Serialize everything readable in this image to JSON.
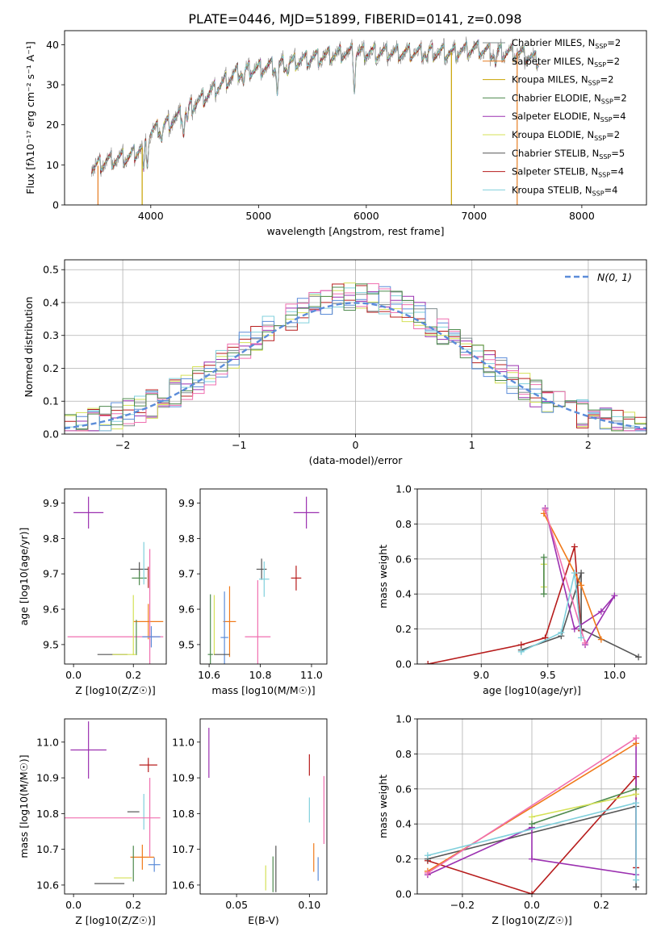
{
  "figure": {
    "title": "PLATE=0446, MJD=51899, FIBERID=0141, z=0.098"
  },
  "colors": {
    "chabrier_miles": "#7f8c8d",
    "salpeter_miles": "#e67e22",
    "kroupa_miles": "#c8a200",
    "chabrier_elodie": "#4e8a4e",
    "salpeter_elodie": "#9b30b0",
    "kroupa_elodie": "#d4e157",
    "chabrier_stelib": "#555555",
    "salpeter_stelib": "#b71c1c",
    "kroupa_stelib": "#80d0dc",
    "pink": "#f06fb0",
    "blue": "#5b8cd9",
    "orange": "#f07a1a"
  },
  "chart_data": [
    {
      "id": "spectrum",
      "type": "line",
      "xlabel": "wavelength [Angstrom, rest frame]",
      "ylabel": "Flux [fλ10⁻¹⁷ erg cm⁻² s⁻¹ A⁻¹]",
      "xlim": [
        3200,
        8600
      ],
      "ylim": [
        0,
        43.5
      ],
      "xticks": [
        4000,
        5000,
        6000,
        7000,
        8000
      ],
      "yticks": [
        0,
        10,
        20,
        30,
        40
      ],
      "legend_position": "top-right",
      "grid": false,
      "series": [
        {
          "name": "Chabrier MILES, N_SSP=2",
          "label_main": "Chabrier MILES, N",
          "label_sub": "SSP",
          "label_end": "=2",
          "color_key": "chabrier_miles"
        },
        {
          "name": "Salpeter MILES, N_SSP=2",
          "label_main": "Salpeter MILES, N",
          "label_sub": "SSP",
          "label_end": "=2",
          "color_key": "salpeter_miles"
        },
        {
          "name": "Kroupa MILES, N_SSP=2",
          "label_main": "Kroupa MILES, N",
          "label_sub": "SSP",
          "label_end": "=2",
          "color_key": "kroupa_miles"
        },
        {
          "name": "Chabrier ELODIE, N_SSP=2",
          "label_main": "Chabrier ELODIE, N",
          "label_sub": "SSP",
          "label_end": "=2",
          "color_key": "chabrier_elodie"
        },
        {
          "name": "Salpeter ELODIE, N_SSP=4",
          "label_main": "Salpeter ELODIE, N",
          "label_sub": "SSP",
          "label_end": "=4",
          "color_key": "salpeter_elodie"
        },
        {
          "name": "Kroupa ELODIE, N_SSP=2",
          "label_main": "Kroupa ELODIE, N",
          "label_sub": "SSP",
          "label_end": "=2",
          "color_key": "kroupa_elodie"
        },
        {
          "name": "Chabrier STELIB, N_SSP=5",
          "label_main": "Chabrier STELIB, N",
          "label_sub": "SSP",
          "label_end": "=5",
          "color_key": "chabrier_stelib"
        },
        {
          "name": "Salpeter STELIB, N_SSP=4",
          "label_main": "Salpeter STELIB, N",
          "label_sub": "SSP",
          "label_end": "=4",
          "color_key": "salpeter_stelib"
        },
        {
          "name": "Kroupa STELIB, N_SSP=4",
          "label_main": "Kroupa STELIB, N",
          "label_sub": "SSP",
          "label_end": "=4",
          "color_key": "kroupa_stelib"
        }
      ],
      "continuum": {
        "x": [
          3450,
          3600,
          3800,
          3950,
          4000,
          4200,
          4400,
          4600,
          4800,
          5000,
          5200,
          5400,
          5600,
          5800,
          6000,
          6200,
          6400,
          6600,
          6800,
          7000,
          7200,
          7400,
          7600
        ],
        "y": [
          9,
          11,
          12,
          15,
          18,
          21,
          25,
          29,
          33,
          34,
          35,
          36,
          37,
          38,
          38,
          38,
          38,
          38,
          38,
          39,
          38,
          38,
          36
        ]
      },
      "absorption_features": [
        {
          "x": 3934,
          "depth": 7
        },
        {
          "x": 3969,
          "depth": 5
        },
        {
          "x": 4102,
          "depth": 3
        },
        {
          "x": 4305,
          "depth": 5
        },
        {
          "x": 4340,
          "depth": 3
        },
        {
          "x": 4861,
          "depth": 3
        },
        {
          "x": 5175,
          "depth": 7
        },
        {
          "x": 5270,
          "depth": 2
        },
        {
          "x": 5890,
          "depth": 9
        },
        {
          "x": 6563,
          "depth": 2
        },
        {
          "x": 7200,
          "depth": 3
        }
      ],
      "dropouts": [
        {
          "x": 3510,
          "color_key": "salpeter_miles"
        },
        {
          "x": 3920,
          "color_key": "kroupa_miles"
        },
        {
          "x": 6790,
          "color_key": "kroupa_miles"
        },
        {
          "x": 7400,
          "color_key": "salpeter_miles"
        }
      ]
    },
    {
      "id": "residuals",
      "type": "line",
      "xlabel": "(data-model)/error",
      "ylabel": "Normed distribution",
      "xlim": [
        -2.5,
        2.5
      ],
      "ylim": [
        0,
        0.53
      ],
      "xticks": [
        -2,
        -1,
        0,
        1,
        2
      ],
      "xtick_labels": [
        "−2",
        "−1",
        "0",
        "1",
        "2"
      ],
      "yticks": [
        0.0,
        0.1,
        0.2,
        0.3,
        0.4,
        0.5
      ],
      "ytick_labels": [
        "0.0",
        "0.1",
        "0.2",
        "0.3",
        "0.4",
        "0.5"
      ],
      "grid": true,
      "legend_position": "top-right",
      "gaussian_label": "N(0, 1)",
      "gaussian_color_key": "blue",
      "bin_width": 0.1,
      "hist_color_keys": [
        "chabrier_miles",
        "salpeter_elodie",
        "kroupa_elodie",
        "salpeter_stelib",
        "kroupa_stelib",
        "blue",
        "pink",
        "chabrier_elodie"
      ]
    },
    {
      "id": "age-vs-Z",
      "type": "scatter",
      "xlabel": "Z [log10(Z/Z☉)]",
      "ylabel": "age [log10(age/yr)]",
      "xlim": [
        -0.03,
        0.31
      ],
      "ylim": [
        9.445,
        9.94
      ],
      "xticks": [
        0.0,
        0.2
      ],
      "xtick_labels": [
        "0.0",
        "0.2"
      ],
      "yticks": [
        9.5,
        9.6,
        9.7,
        9.8,
        9.9
      ],
      "ytick_labels": [
        "9.5",
        "9.6",
        "9.7",
        "9.8",
        "9.9"
      ],
      "grid": false,
      "points": [
        {
          "x": 0.05,
          "y": 9.873,
          "xerr": 0.05,
          "yerr": 0.045,
          "color_key": "salpeter_elodie"
        },
        {
          "x": 0.22,
          "y": 9.713,
          "xerr": 0.03,
          "yerr": 0.02,
          "color_key": "chabrier_stelib"
        },
        {
          "x": 0.22,
          "y": 9.688,
          "xerr": 0.025,
          "yerr": 0.02,
          "color_key": "chabrier_elodie"
        },
        {
          "x": 0.25,
          "y": 9.69,
          "xerr": 0.0,
          "yerr": 0.03,
          "color_key": "salpeter_stelib"
        },
        {
          "x": 0.235,
          "y": 9.73,
          "xerr": 0.0,
          "yerr": 0.06,
          "color_key": "kroupa_stelib"
        },
        {
          "x": 0.25,
          "y": 9.565,
          "xerr": 0.05,
          "yerr": 0.05,
          "color_key": "orange"
        },
        {
          "x": 0.14,
          "y": 9.522,
          "xerr": 0.16,
          "yerr": 0.0,
          "color_key": "pink"
        },
        {
          "x": 0.255,
          "y": 9.6,
          "xerr": 0.0,
          "yerr": 0.17,
          "color_key": "pink"
        },
        {
          "x": 0.2,
          "y": 9.555,
          "xerr": 0.0,
          "yerr": 0.085,
          "color_key": "kroupa_elodie"
        },
        {
          "x": 0.13,
          "y": 9.472,
          "xerr": 0.05,
          "yerr": 0.0,
          "color_key": "chabrier_stelib"
        },
        {
          "x": 0.21,
          "y": 9.52,
          "xerr": 0.0,
          "yerr": 0.05,
          "color_key": "chabrier_elodie"
        },
        {
          "x": 0.17,
          "y": 9.472,
          "xerr": 0.04,
          "yerr": 0.0,
          "color_key": "kroupa_elodie"
        },
        {
          "x": 0.26,
          "y": 9.522,
          "xerr": 0.03,
          "yerr": 0.03,
          "color_key": "blue"
        }
      ]
    },
    {
      "id": "age-vs-mass",
      "type": "scatter",
      "xlabel": "mass [log10(M/M☉)]",
      "xlim": [
        10.565,
        11.06
      ],
      "ylim": [
        9.445,
        9.94
      ],
      "xticks": [
        10.6,
        10.8,
        11.0
      ],
      "xtick_labels": [
        "10.6",
        "10.8",
        "11.0"
      ],
      "yticks": [
        9.5,
        9.6,
        9.7,
        9.8,
        9.9
      ],
      "ytick_labels": [
        "9.5",
        "9.6",
        "9.7",
        "9.8",
        "9.9"
      ],
      "grid": false,
      "points": [
        {
          "x": 10.98,
          "y": 9.873,
          "xerr": 0.05,
          "yerr": 0.045,
          "color_key": "salpeter_elodie"
        },
        {
          "x": 10.805,
          "y": 9.713,
          "xerr": 0.02,
          "yerr": 0.03,
          "color_key": "chabrier_stelib"
        },
        {
          "x": 10.94,
          "y": 9.688,
          "xerr": 0.02,
          "yerr": 0.035,
          "color_key": "salpeter_stelib"
        },
        {
          "x": 10.815,
          "y": 9.685,
          "xerr": 0.02,
          "yerr": 0.05,
          "color_key": "kroupa_stelib"
        },
        {
          "x": 10.68,
          "y": 9.565,
          "xerr": 0.025,
          "yerr": 0.1,
          "color_key": "orange"
        },
        {
          "x": 10.66,
          "y": 9.52,
          "xerr": 0.015,
          "yerr": 0.13,
          "color_key": "blue"
        },
        {
          "x": 10.79,
          "y": 9.522,
          "xerr": 0.05,
          "yerr": 0.16,
          "color_key": "pink"
        },
        {
          "x": 10.62,
          "y": 9.555,
          "xerr": 0.0,
          "yerr": 0.085,
          "color_key": "kroupa_elodie"
        },
        {
          "x": 10.605,
          "y": 9.472,
          "xerr": 0.01,
          "yerr": 0.17,
          "color_key": "chabrier_elodie"
        },
        {
          "x": 10.65,
          "y": 9.472,
          "xerr": 0.03,
          "yerr": 0.0,
          "color_key": "chabrier_stelib"
        }
      ]
    },
    {
      "id": "mass-weight-vs-age",
      "type": "line",
      "xlabel": "age [log10(age/yr)]",
      "ylabel": "mass weight",
      "xlim": [
        8.52,
        10.24
      ],
      "ylim": [
        0.0,
        1.0
      ],
      "xticks": [
        9.0,
        9.5,
        10.0
      ],
      "xtick_labels": [
        "9.0",
        "9.5",
        "10.0"
      ],
      "yticks": [
        0.0,
        0.2,
        0.4,
        0.6,
        0.8,
        1.0
      ],
      "ytick_labels": [
        "0.0",
        "0.2",
        "0.4",
        "0.6",
        "0.8",
        "1.0"
      ],
      "grid": true,
      "series": [
        {
          "color_key": "salpeter_stelib",
          "x": [
            8.6,
            9.3,
            9.48,
            9.7,
            9.75
          ],
          "y": [
            0.0,
            0.11,
            0.15,
            0.67,
            0.19
          ]
        },
        {
          "color_key": "chabrier_stelib",
          "x": [
            9.3,
            9.6,
            9.75,
            9.75,
            10.18
          ],
          "y": [
            0.08,
            0.16,
            0.52,
            0.2,
            0.04
          ]
        },
        {
          "color_key": "salpeter_elodie",
          "x": [
            9.48,
            9.7,
            9.9,
            10.0,
            9.78
          ],
          "y": [
            0.89,
            0.2,
            0.3,
            0.39,
            0.11
          ]
        },
        {
          "color_key": "orange",
          "x": [
            9.47,
            9.75,
            9.9
          ],
          "y": [
            0.86,
            0.45,
            0.14
          ]
        },
        {
          "color_key": "pink",
          "x": [
            9.48,
            9.78
          ],
          "y": [
            0.88,
            0.12
          ]
        },
        {
          "color_key": "kroupa_elodie",
          "x": [
            9.47,
            9.47
          ],
          "y": [
            0.44,
            0.57
          ]
        },
        {
          "color_key": "chabrier_elodie",
          "x": [
            9.47,
            9.47
          ],
          "y": [
            0.4,
            0.61
          ]
        },
        {
          "color_key": "kroupa_stelib",
          "x": [
            9.3,
            9.6,
            9.7,
            9.75
          ],
          "y": [
            0.07,
            0.18,
            0.52,
            0.15
          ]
        }
      ]
    },
    {
      "id": "mass-vs-Z",
      "type": "scatter",
      "xlabel": "Z [log10(Z/Z☉)]",
      "ylabel": "mass [log10(M/M☉)]",
      "xlim": [
        -0.03,
        0.31
      ],
      "ylim": [
        10.575,
        11.065
      ],
      "xticks": [
        0.0,
        0.2
      ],
      "xtick_labels": [
        "0.0",
        "0.2"
      ],
      "yticks": [
        10.6,
        10.7,
        10.8,
        10.9,
        11.0
      ],
      "ytick_labels": [
        "10.6",
        "10.7",
        "10.8",
        "10.9",
        "11.0"
      ],
      "grid": false,
      "points": [
        {
          "x": 0.05,
          "y": 10.978,
          "xerr": 0.06,
          "yerr": 0.08,
          "color_key": "salpeter_elodie"
        },
        {
          "x": 0.25,
          "y": 10.936,
          "xerr": 0.03,
          "yerr": 0.02,
          "color_key": "salpeter_stelib"
        },
        {
          "x": 0.2,
          "y": 10.805,
          "xerr": 0.02,
          "yerr": 0.0,
          "color_key": "chabrier_stelib"
        },
        {
          "x": 0.235,
          "y": 10.805,
          "xerr": 0.0,
          "yerr": 0.05,
          "color_key": "kroupa_stelib"
        },
        {
          "x": 0.13,
          "y": 10.788,
          "xerr": 0.16,
          "yerr": 0.0,
          "color_key": "pink"
        },
        {
          "x": 0.255,
          "y": 10.79,
          "xerr": 0.0,
          "yerr": 0.11,
          "color_key": "pink"
        },
        {
          "x": 0.23,
          "y": 10.678,
          "xerr": 0.04,
          "yerr": 0.035,
          "color_key": "orange"
        },
        {
          "x": 0.27,
          "y": 10.657,
          "xerr": 0.02,
          "yerr": 0.02,
          "color_key": "blue"
        },
        {
          "x": 0.2,
          "y": 10.66,
          "xerr": 0.0,
          "yerr": 0.05,
          "color_key": "chabrier_elodie"
        },
        {
          "x": 0.165,
          "y": 10.62,
          "xerr": 0.03,
          "yerr": 0.0,
          "color_key": "kroupa_elodie"
        },
        {
          "x": 0.12,
          "y": 10.604,
          "xerr": 0.05,
          "yerr": 0.0,
          "color_key": "chabrier_stelib"
        }
      ]
    },
    {
      "id": "mass-vs-EBV",
      "type": "scatter",
      "xlabel": "E(B-V)",
      "xlim": [
        0.025,
        0.112
      ],
      "ylim": [
        10.575,
        11.065
      ],
      "xticks": [
        0.05,
        0.1
      ],
      "xtick_labels": [
        "0.05",
        "0.10"
      ],
      "yticks": [
        10.6,
        10.7,
        10.8,
        10.9,
        11.0
      ],
      "ytick_labels": [
        "10.6",
        "10.7",
        "10.8",
        "10.9",
        "11.0"
      ],
      "grid": false,
      "points": [
        {
          "x": 0.031,
          "y": 10.97,
          "xerr": 0.0,
          "yerr": 0.07,
          "color_key": "salpeter_elodie"
        },
        {
          "x": 0.1,
          "y": 10.936,
          "xerr": 0.0,
          "yerr": 0.03,
          "color_key": "salpeter_stelib"
        },
        {
          "x": 0.1,
          "y": 10.81,
          "xerr": 0.0,
          "yerr": 0.035,
          "color_key": "kroupa_stelib"
        },
        {
          "x": 0.11,
          "y": 10.81,
          "xerr": 0.0,
          "yerr": 0.095,
          "color_key": "pink"
        },
        {
          "x": 0.103,
          "y": 10.677,
          "xerr": 0.0,
          "yerr": 0.04,
          "color_key": "orange"
        },
        {
          "x": 0.106,
          "y": 10.645,
          "xerr": 0.0,
          "yerr": 0.033,
          "color_key": "blue"
        },
        {
          "x": 0.077,
          "y": 10.645,
          "xerr": 0.0,
          "yerr": 0.065,
          "color_key": "chabrier_stelib"
        },
        {
          "x": 0.07,
          "y": 10.62,
          "xerr": 0.0,
          "yerr": 0.035,
          "color_key": "kroupa_elodie"
        },
        {
          "x": 0.075,
          "y": 10.63,
          "xerr": 0.0,
          "yerr": 0.05,
          "color_key": "chabrier_elodie"
        }
      ]
    },
    {
      "id": "mass-weight-vs-Z",
      "type": "line",
      "xlabel": "Z [log10(Z/Z☉)]",
      "ylabel": "mass weight",
      "xlim": [
        -0.33,
        0.33
      ],
      "ylim": [
        0.0,
        1.0
      ],
      "xticks": [
        -0.2,
        0.0,
        0.2
      ],
      "xtick_labels": [
        "−0.2",
        "0.0",
        "0.2"
      ],
      "yticks": [
        0.0,
        0.2,
        0.4,
        0.6,
        0.8,
        1.0
      ],
      "ytick_labels": [
        "0.0",
        "0.2",
        "0.4",
        "0.6",
        "0.8",
        "1.0"
      ],
      "grid": true,
      "series": [
        {
          "color_key": "salpeter_stelib",
          "x": [
            -0.3,
            0.0,
            0.3,
            0.3
          ],
          "y": [
            0.19,
            0.0,
            0.67,
            0.15
          ]
        },
        {
          "color_key": "chabrier_stelib",
          "x": [
            -0.3,
            0.3,
            0.3
          ],
          "y": [
            0.2,
            0.5,
            0.04
          ]
        },
        {
          "color_key": "salpeter_elodie",
          "x": [
            -0.3,
            0.0,
            0.0,
            0.3,
            0.3
          ],
          "y": [
            0.11,
            0.38,
            0.2,
            0.11,
            0.89
          ]
        },
        {
          "color_key": "orange",
          "x": [
            -0.3,
            0.3
          ],
          "y": [
            0.13,
            0.86
          ]
        },
        {
          "color_key": "pink",
          "x": [
            -0.3,
            0.3
          ],
          "y": [
            0.12,
            0.89
          ]
        },
        {
          "color_key": "chabrier_elodie",
          "x": [
            0.0,
            0.3
          ],
          "y": [
            0.4,
            0.6
          ]
        },
        {
          "color_key": "kroupa_elodie",
          "x": [
            0.0,
            0.3
          ],
          "y": [
            0.44,
            0.57
          ]
        },
        {
          "color_key": "kroupa_stelib",
          "x": [
            -0.3,
            0.3,
            0.3
          ],
          "y": [
            0.22,
            0.52,
            0.08
          ]
        }
      ]
    }
  ]
}
